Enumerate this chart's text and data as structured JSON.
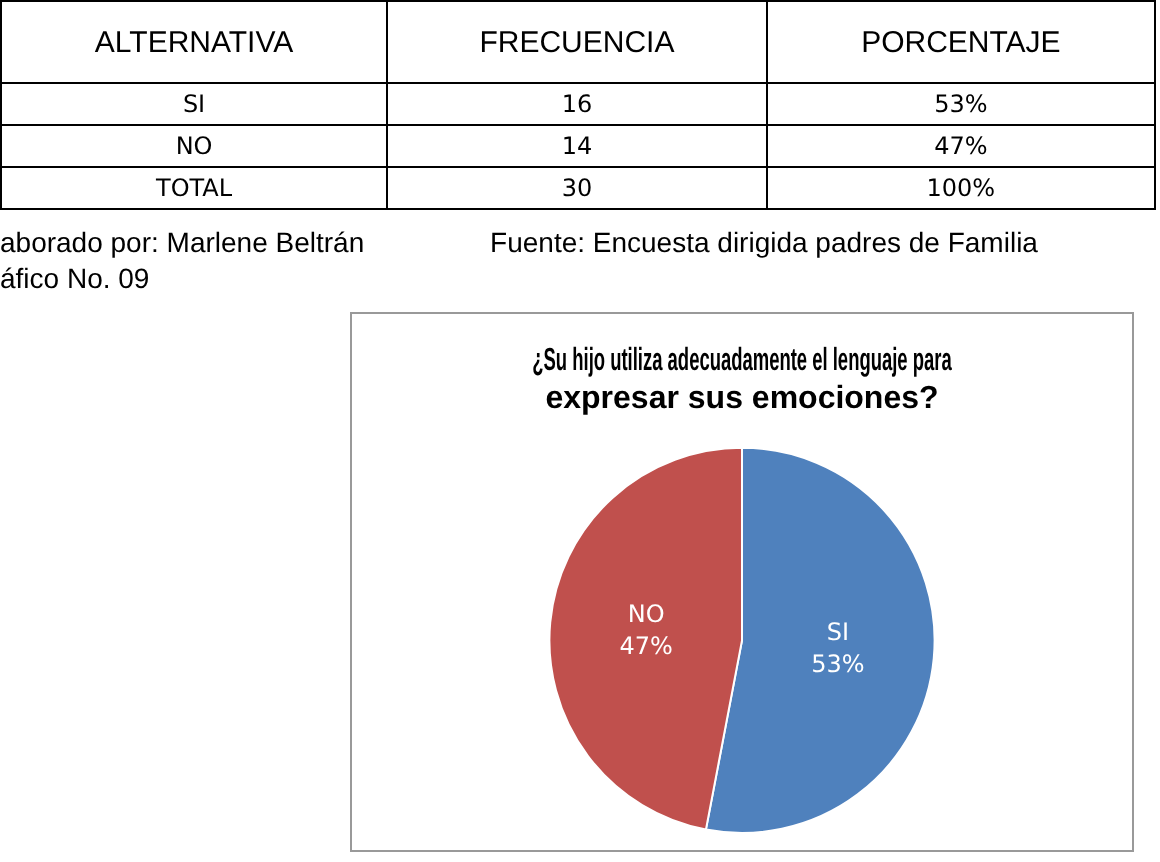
{
  "chart_data": {
    "type": "pie",
    "title": "¿Su hijo utiliza adecuadamente el lenguaje para expresar sus emociones?",
    "categories": [
      "SI",
      "NO"
    ],
    "values": [
      53,
      47
    ],
    "colors": [
      "#4f81bd",
      "#c0504d"
    ],
    "value_labels": [
      "53%",
      "47%"
    ],
    "annotations": [
      "ALTERNATIVA",
      "FRECUENCIA",
      "PORCENTAJE",
      "SI",
      "16",
      "53%",
      "NO",
      "14",
      "47%",
      "TOTAL",
      "30",
      "100%",
      "aborado por: Marlene Beltrán",
      "Fuente: Encuesta dirigida padres de Familia",
      "áfico No. 09"
    ]
  }
}
